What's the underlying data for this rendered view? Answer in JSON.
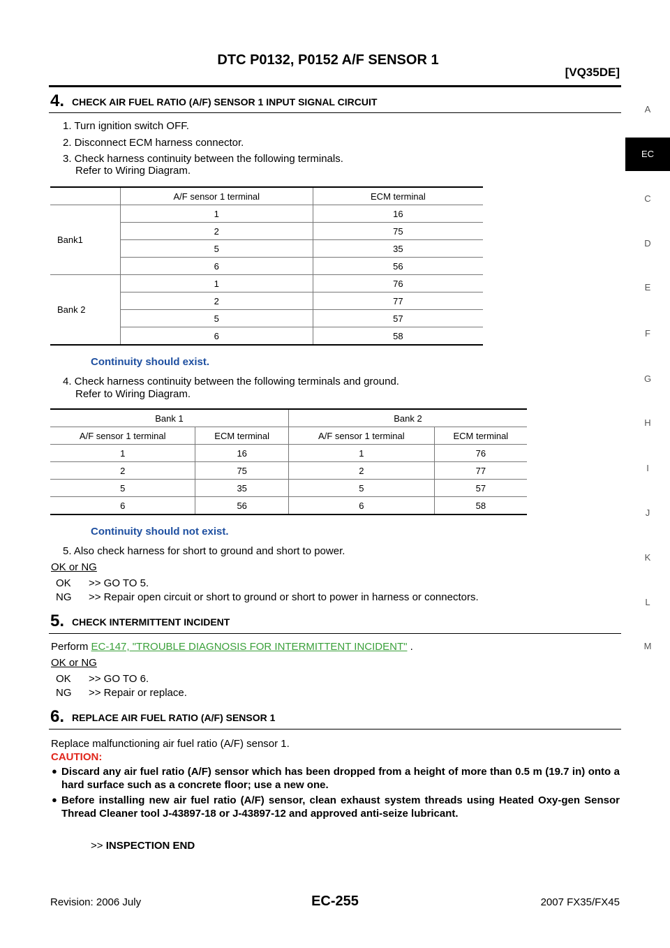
{
  "header": {
    "title": "DTC P0132, P0152 A/F SENSOR 1",
    "engine": "[VQ35DE]"
  },
  "side_index": [
    "A",
    "EC",
    "C",
    "D",
    "E",
    "F",
    "G",
    "H",
    "I",
    "J",
    "K",
    "L",
    "M"
  ],
  "step4": {
    "number": "4.",
    "title": "CHECK AIR FUEL RATIO (A/F) SENSOR 1 INPUT SIGNAL CIRCUIT",
    "instructions": [
      "1. Turn ignition switch OFF.",
      "2. Disconnect ECM harness connector.",
      "3. Check harness continuity between the following terminals."
    ],
    "refer_1": "Refer to Wiring Diagram.",
    "table1": {
      "headers": [
        "A/F sensor 1 terminal",
        "ECM terminal"
      ],
      "groups": [
        {
          "label": "Bank1",
          "rows": [
            [
              1,
              16
            ],
            [
              2,
              75
            ],
            [
              5,
              35
            ],
            [
              6,
              56
            ]
          ]
        },
        {
          "label": "Bank 2",
          "rows": [
            [
              1,
              76
            ],
            [
              2,
              77
            ],
            [
              5,
              57
            ],
            [
              6,
              58
            ]
          ]
        }
      ]
    },
    "result_1": "Continuity should exist.",
    "instruction_4": "4. Check harness continuity between the following terminals and ground.",
    "refer_2": "Refer to Wiring Diagram.",
    "table2": {
      "group_headers": [
        "Bank 1",
        "Bank 2"
      ],
      "headers": [
        "A/F sensor 1 terminal",
        "ECM terminal",
        "A/F sensor 1 terminal",
        "ECM terminal"
      ],
      "rows": [
        [
          1,
          16,
          1,
          76
        ],
        [
          2,
          75,
          2,
          77
        ],
        [
          5,
          35,
          5,
          57
        ],
        [
          6,
          56,
          6,
          58
        ]
      ]
    },
    "result_2": "Continuity should not exist.",
    "instruction_5": "5. Also check harness for short to ground and short to power.",
    "ok_ng": "OK or NG",
    "options": [
      {
        "code": "OK",
        "text": ">> GO TO 5."
      },
      {
        "code": "NG",
        "text": ">> Repair open circuit or short to ground or short to power in harness or connectors."
      }
    ]
  },
  "step5": {
    "number": "5.",
    "title": "CHECK INTERMITTENT INCIDENT",
    "perform_prefix": "Perform",
    "perform_link": "EC-147, \"TROUBLE DIAGNOSIS FOR INTERMITTENT INCIDENT\"",
    "perform_suffix": ".",
    "ok_ng": "OK or NG",
    "options": [
      {
        "code": "OK",
        "text": ">> GO TO 6."
      },
      {
        "code": "NG",
        "text": ">> Repair or replace."
      }
    ]
  },
  "step6": {
    "number": "6.",
    "title": "REPLACE AIR FUEL RATIO (A/F) SENSOR 1",
    "text": "Replace malfunctioning air fuel ratio (A/F) sensor 1.",
    "caution_label": "CAUTION:",
    "cautions": [
      "Discard any air fuel ratio (A/F) sensor which has been dropped from a height of more than 0.5 m (19.7 in) onto a hard surface such as a concrete floor; use a new one.",
      "Before installing new air fuel ratio (A/F) sensor, clean exhaust system threads using Heated Oxy-gen Sensor Thread Cleaner tool J-43897-18 or J-43897-12 and approved anti-seize lubricant."
    ],
    "end_arrow": ">>",
    "end_text": "INSPECTION END"
  },
  "footer": {
    "revision": "Revision: 2006 July",
    "page": "EC-255",
    "model": "2007 FX35/FX45"
  }
}
